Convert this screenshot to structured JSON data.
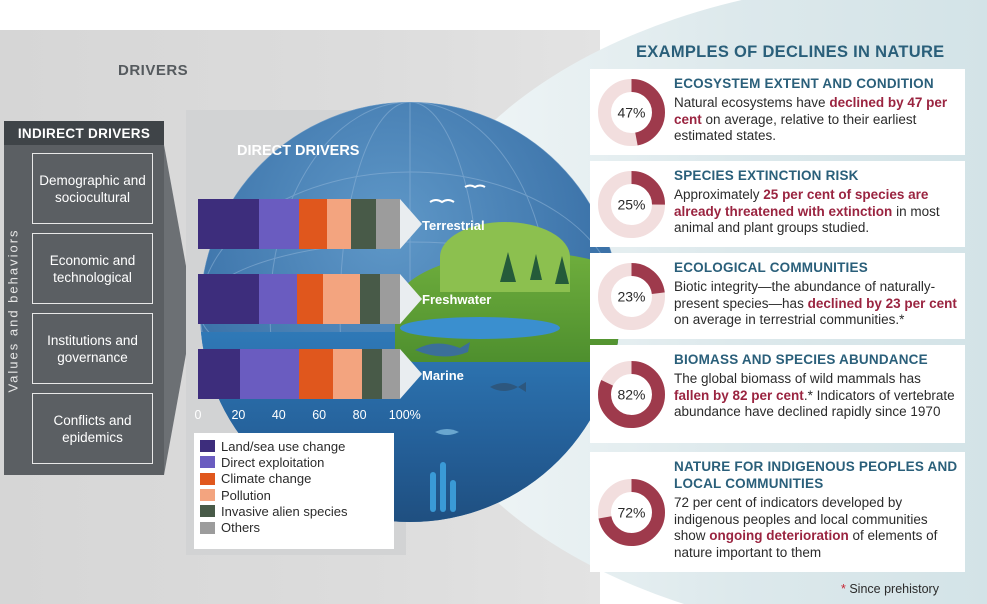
{
  "drivers_title": "DRIVERS",
  "indirect": {
    "heading": "INDIRECT DRIVERS",
    "values_label": "Values and behaviors",
    "items": [
      "Demographic and sociocultural",
      "Economic and technological",
      "Institutions and governance",
      "Conflicts and epidemics"
    ]
  },
  "direct": {
    "heading": "DIRECT DRIVERS",
    "realms": [
      "Terrestrial",
      "Freshwater",
      "Marine"
    ]
  },
  "chart_data": {
    "type": "bar",
    "orientation": "horizontal-stacked",
    "categories": [
      "Terrestrial",
      "Freshwater",
      "Marine"
    ],
    "series": [
      {
        "name": "Land/sea use change",
        "color": "#3d2d7c",
        "values": [
          30,
          30,
          21
        ]
      },
      {
        "name": "Direct exploitation",
        "color": "#6a5cc0",
        "values": [
          20,
          19,
          29
        ]
      },
      {
        "name": "Climate change",
        "color": "#e0571d",
        "values": [
          14,
          13,
          17
        ]
      },
      {
        "name": "Pollution",
        "color": "#f3a47f",
        "values": [
          12,
          18,
          14
        ]
      },
      {
        "name": "Invasive alien species",
        "color": "#485a48",
        "values": [
          12,
          10,
          10
        ]
      },
      {
        "name": "Others",
        "color": "#9c9c9c",
        "values": [
          12,
          10,
          9
        ]
      }
    ],
    "xlim": [
      0,
      100
    ],
    "xticks": [
      "0",
      "20",
      "40",
      "60",
      "80",
      "100%"
    ],
    "legend_position": "bottom"
  },
  "examples": {
    "title": "EXAMPLES OF DECLINES IN NATURE",
    "ring_colors": {
      "filled": "#9e3a4c",
      "empty": "#f2dede"
    },
    "cards": [
      {
        "pct": "47%",
        "value": 47,
        "heading": "ECOSYSTEM EXTENT AND CONDITION",
        "body": [
          "Natural ecosystems have ",
          {
            "b": "declined by 47 per cent"
          },
          " on average, relative to their earliest estimated states."
        ]
      },
      {
        "pct": "25%",
        "value": 25,
        "heading": "SPECIES EXTINCTION RISK",
        "body": [
          "Approximately ",
          {
            "b": "25 per cent of species are already threatened with extinction"
          },
          " in most animal and plant groups studied."
        ]
      },
      {
        "pct": "23%",
        "value": 23,
        "heading": "ECOLOGICAL COMMUNITIES",
        "body": [
          "Biotic integrity—the abundance of naturally-present species—has ",
          {
            "b": "declined by 23 per cent"
          },
          " on average in terrestrial communities.*"
        ]
      },
      {
        "pct": "82%",
        "value": 82,
        "heading": "BIOMASS AND SPECIES ABUNDANCE",
        "body": [
          "The global biomass of wild mammals has ",
          {
            "b": "fallen by 82 per cent"
          },
          ".* Indicators of vertebrate abundance have declined rapidly since 1970"
        ]
      },
      {
        "pct": "72%",
        "value": 72,
        "heading": "NATURE FOR INDIGENOUS PEOPLES AND LOCAL COMMUNITIES",
        "body": [
          "72 per cent of indicators developed by indigenous peoples and local communities show ",
          {
            "b": "ongoing deterioration"
          },
          " of elements of nature important to them"
        ]
      }
    ]
  },
  "footnote": {
    "star": "*",
    "text": " Since prehistory"
  }
}
